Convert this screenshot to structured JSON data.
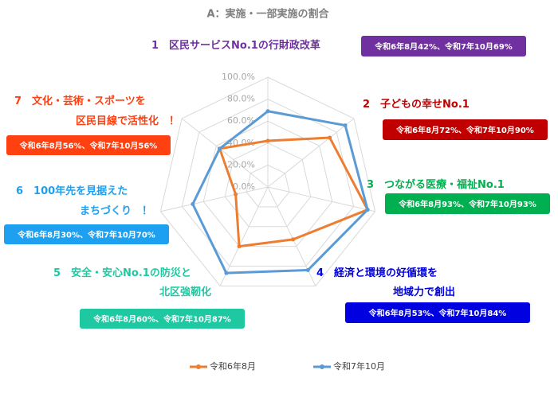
{
  "chart_data": {
    "type": "radar",
    "title": "A：実施・一部実施の割合",
    "categories": [
      "1　区民サービスNo.1の行財政改革",
      "2　子どもの幸せNo.1",
      "3　つながる医療・福祉No.1",
      "4　経済と環境の好循環を\n地域力で創出",
      "5　安全・安心No.1の防災と\n北区強靭化",
      "6　100年先を見据えた\nまちづくり　！",
      "7　文化・芸術・スポーツを\n区民目線で活性化　！"
    ],
    "series": [
      {
        "name": "令和6年8月",
        "color": "#ed7d31",
        "values": [
          42,
          72,
          93,
          53,
          60,
          30,
          56
        ]
      },
      {
        "name": "令和7年10月",
        "color": "#5b9bd5",
        "values": [
          69,
          90,
          93,
          84,
          87,
          70,
          56
        ]
      }
    ],
    "rlim": [
      0,
      100
    ],
    "rticks": [
      {
        "value": 0,
        "label": "0.0%"
      },
      {
        "value": 20,
        "label": "20.0%"
      },
      {
        "value": 40,
        "label": "40.0%"
      },
      {
        "value": 60,
        "label": "60.0%"
      },
      {
        "value": 80,
        "label": "80.0%"
      },
      {
        "value": 100,
        "label": "100.0%"
      }
    ],
    "grid": true,
    "legend": "bottom",
    "annotations": [
      {
        "text": "令和6年8月42%、令和7年10月69%",
        "color": "#7030a0"
      },
      {
        "text": "令和6年8月72%、令和7年10月90%",
        "color": "#c00000"
      },
      {
        "text": "令和6年8月93%、令和7年10月93%",
        "color": "#00b050"
      },
      {
        "text": "令和6年8月53%、令和7年10月84%",
        "color": "#0000e0"
      },
      {
        "text": "令和6年8月60%、令和7年10月87%",
        "color": "#1ec8a0"
      },
      {
        "text": "令和6年8月30%、令和7年10月70%",
        "color": "#1ea0f0"
      },
      {
        "text": "令和6年8月56%、令和7年10月56%",
        "color": "#ff4010"
      }
    ]
  }
}
